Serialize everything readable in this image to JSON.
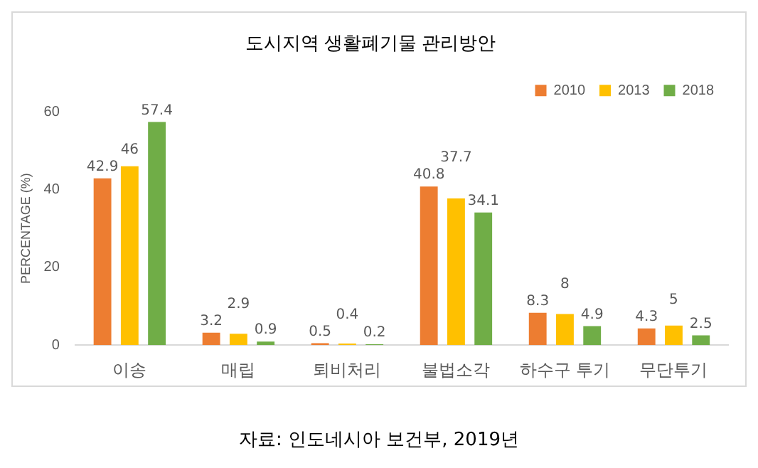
{
  "chart_data": {
    "type": "bar",
    "title": "도시지역 생활폐기물 관리방안",
    "ylabel": "PERCENTAGE (%)",
    "categories": [
      "이송",
      "매립",
      "퇴비처리",
      "불법소각",
      "하수구 투기",
      "무단투기"
    ],
    "series": [
      {
        "name": "2010",
        "color": "#ed7d31",
        "values": [
          42.9,
          3.2,
          0.5,
          40.8,
          8.3,
          4.3
        ]
      },
      {
        "name": "2013",
        "color": "#ffc000",
        "values": [
          46,
          2.9,
          0.4,
          37.7,
          8,
          5
        ]
      },
      {
        "name": "2018",
        "color": "#70ad47",
        "values": [
          57.4,
          0.9,
          0.2,
          34.1,
          4.9,
          2.5
        ]
      }
    ],
    "ylim": [
      0,
      60
    ],
    "yticks": [
      0,
      20,
      40,
      60
    ],
    "grid": false,
    "legend": "top right",
    "data_labels": true,
    "annotations": [
      "자료: 인도네시아 보건부, 2019년"
    ]
  }
}
